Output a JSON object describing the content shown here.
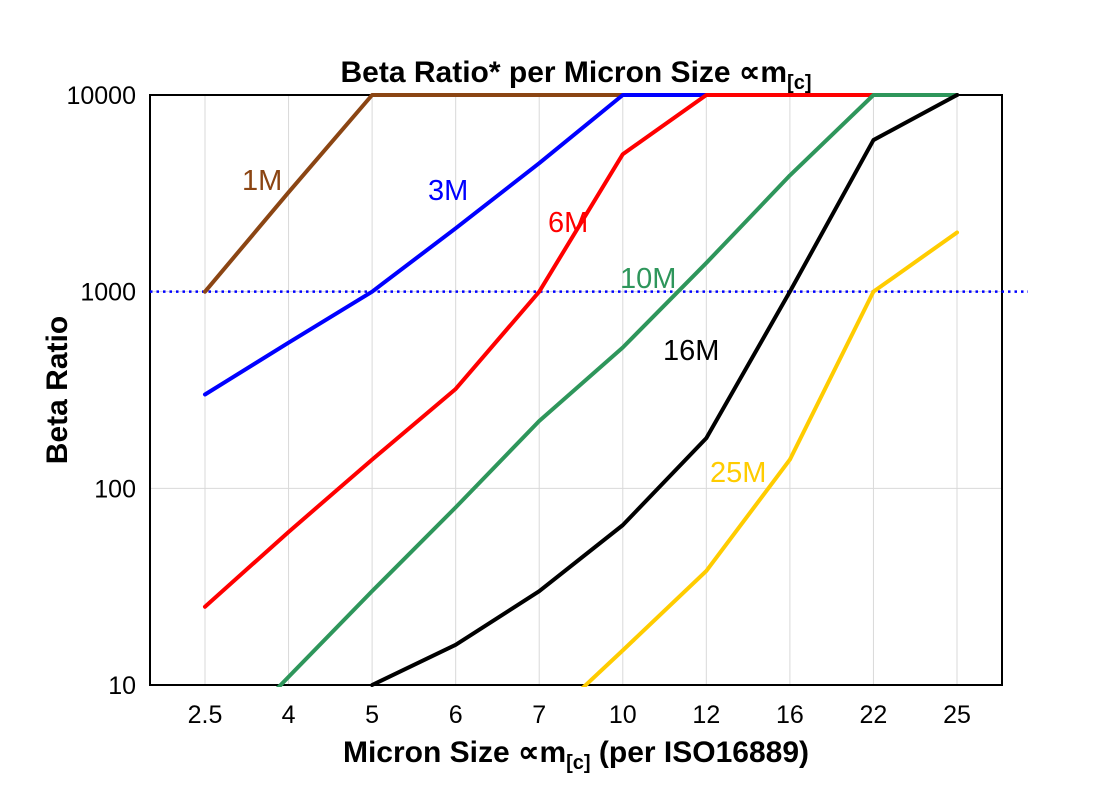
{
  "title": {
    "text": "Beta Ratio* per Micron Size ∝m",
    "sub": "[c]"
  },
  "y_axis": {
    "label": "Beta Ratio"
  },
  "x_axis": {
    "label_pre": "Micron Size ∝m",
    "label_sub": "[c]",
    "label_post": " (per ISO16889)"
  },
  "chart_data": {
    "type": "line",
    "title": "Beta Ratio* per Micron Size ∝m[c]",
    "xlabel": "Micron Size ∝m[c] (per ISO16889)",
    "ylabel": "Beta Ratio",
    "x_scale": "category",
    "y_scale": "log",
    "ylim": [
      10,
      10000
    ],
    "y_ticks": [
      10,
      100,
      1000,
      10000
    ],
    "categories": [
      "2.5",
      "4",
      "5",
      "6",
      "7",
      "10",
      "12",
      "16",
      "22",
      "25"
    ],
    "grid": true,
    "legend": "inline-labels",
    "reference_line": {
      "y": 1000,
      "color": "#0000FF",
      "style": "dotted"
    },
    "series": [
      {
        "name": "1M",
        "color": "#8B4513",
        "values": [
          1000,
          3200,
          10000,
          10000,
          10000,
          10000,
          10000,
          10000,
          10000,
          10000
        ],
        "label_pos": [
          242,
          190
        ]
      },
      {
        "name": "3M",
        "color": "#0000FF",
        "values": [
          300,
          550,
          1000,
          2100,
          4500,
          10000,
          10000,
          10000,
          10000,
          10000
        ],
        "label_pos": [
          428,
          200
        ]
      },
      {
        "name": "6M",
        "color": "#FF0000",
        "values": [
          25,
          60,
          140,
          320,
          1000,
          5000,
          10000,
          10000,
          10000,
          10000
        ],
        "label_pos": [
          548,
          232
        ]
      },
      {
        "name": "10M",
        "color": "#2E965B",
        "values": [
          4,
          11,
          30,
          80,
          220,
          520,
          1400,
          3900,
          10000,
          10000
        ],
        "label_pos": [
          620,
          288
        ]
      },
      {
        "name": "16M",
        "color": "#000000",
        "values": [
          null,
          null,
          10,
          16,
          30,
          65,
          180,
          1000,
          5900,
          10000
        ],
        "label_pos": [
          663,
          360
        ]
      },
      {
        "name": "25M",
        "color": "#FFCC00",
        "values": [
          null,
          null,
          null,
          null,
          6,
          15,
          38,
          140,
          1000,
          2000
        ],
        "label_pos": [
          710,
          482
        ]
      }
    ]
  }
}
